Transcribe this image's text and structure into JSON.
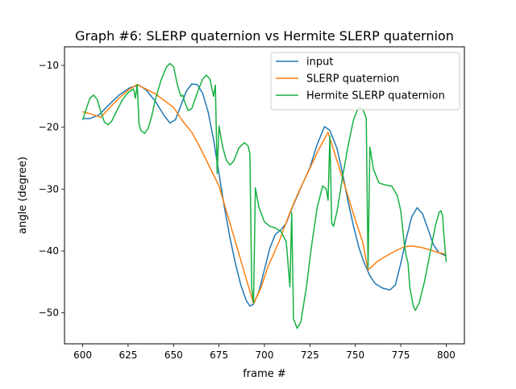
{
  "chart_data": {
    "type": "line",
    "title": "Graph #6: SLERP quaternion vs Hermite SLERP quaternion",
    "xlabel": "frame #",
    "ylabel": "angle (degree)",
    "xlim": [
      590,
      810
    ],
    "ylim": [
      -55,
      -7
    ],
    "xticks": [
      600,
      625,
      650,
      675,
      700,
      725,
      750,
      775,
      800
    ],
    "yticks": [
      -10,
      -20,
      -30,
      -40,
      -50
    ],
    "xtick_labels": [
      "600",
      "625",
      "650",
      "675",
      "700",
      "725",
      "750",
      "775",
      "800"
    ],
    "ytick_labels": [
      "−10",
      "−20",
      "−30",
      "−40",
      "−50"
    ],
    "grid": false,
    "legend_position": "top-right",
    "series": [
      {
        "name": "input",
        "color": "#1f77b4",
        "points": [
          [
            600,
            -18.6
          ],
          [
            604,
            -18.6
          ],
          [
            609,
            -18
          ],
          [
            614,
            -16.5
          ],
          [
            620,
            -14.8
          ],
          [
            626,
            -13.6
          ],
          [
            631,
            -13.2
          ],
          [
            635,
            -14
          ],
          [
            640,
            -15.8
          ],
          [
            645,
            -18.2
          ],
          [
            648,
            -19.3
          ],
          [
            651,
            -18.8
          ],
          [
            654,
            -16.5
          ],
          [
            657,
            -14.2
          ],
          [
            660,
            -13
          ],
          [
            663,
            -13.1
          ],
          [
            666,
            -14.5
          ],
          [
            669,
            -17.5
          ],
          [
            672,
            -22
          ],
          [
            675,
            -27.5
          ],
          [
            678,
            -33
          ],
          [
            681,
            -37.8
          ],
          [
            684,
            -42
          ],
          [
            687,
            -45.5
          ],
          [
            690,
            -48
          ],
          [
            692,
            -48.9
          ],
          [
            694,
            -48.6
          ],
          [
            697,
            -46.5
          ],
          [
            700,
            -43
          ],
          [
            703,
            -39.5
          ],
          [
            706,
            -37.3
          ],
          [
            709,
            -36.6
          ],
          [
            712,
            -35.5
          ],
          [
            715,
            -33.2
          ],
          [
            720,
            -29.8
          ],
          [
            725,
            -26.5
          ],
          [
            729,
            -22.8
          ],
          [
            733,
            -19.9
          ],
          [
            736,
            -20.5
          ],
          [
            740,
            -23.5
          ],
          [
            743,
            -27.5
          ],
          [
            746,
            -32
          ],
          [
            749,
            -36
          ],
          [
            752,
            -39.5
          ],
          [
            755,
            -42
          ],
          [
            758,
            -44
          ],
          [
            761,
            -45.3
          ],
          [
            765,
            -46
          ],
          [
            769,
            -46.3
          ],
          [
            772,
            -45.5
          ],
          [
            775,
            -42
          ],
          [
            778,
            -38
          ],
          [
            781,
            -34.5
          ],
          [
            784,
            -33
          ],
          [
            787,
            -34
          ],
          [
            790,
            -36.5
          ],
          [
            793,
            -39
          ],
          [
            796,
            -40.3
          ],
          [
            800,
            -40.8
          ]
        ]
      },
      {
        "name": "SLERP quaternion",
        "color": "#ff7f0e",
        "points": [
          [
            600,
            -17.5
          ],
          [
            605,
            -17.9
          ],
          [
            610,
            -18.4
          ],
          [
            615,
            -16.8
          ],
          [
            620,
            -15.3
          ],
          [
            625,
            -14
          ],
          [
            630,
            -13.1
          ],
          [
            640,
            -14.6
          ],
          [
            650,
            -16.8
          ],
          [
            655,
            -19
          ],
          [
            660,
            -20.8
          ],
          [
            665,
            -23.5
          ],
          [
            670,
            -26.5
          ],
          [
            675,
            -29.5
          ],
          [
            680,
            -34.5
          ],
          [
            685,
            -39.5
          ],
          [
            690,
            -44.5
          ],
          [
            694,
            -48.5
          ],
          [
            698,
            -46
          ],
          [
            702,
            -42.5
          ],
          [
            708,
            -38.5
          ],
          [
            714,
            -33.8
          ],
          [
            718,
            -31
          ],
          [
            722,
            -28.5
          ],
          [
            726,
            -26
          ],
          [
            730,
            -23.5
          ],
          [
            735,
            -20.8
          ],
          [
            740,
            -25.5
          ],
          [
            745,
            -30.2
          ],
          [
            750,
            -35
          ],
          [
            754,
            -38.5
          ],
          [
            757,
            -43.1
          ],
          [
            762,
            -41.7
          ],
          [
            767,
            -40.8
          ],
          [
            772,
            -40
          ],
          [
            777,
            -39.3
          ],
          [
            781,
            -39.2
          ],
          [
            786,
            -39.4
          ],
          [
            791,
            -39.8
          ],
          [
            796,
            -40.3
          ],
          [
            800,
            -40.5
          ]
        ]
      },
      {
        "name": "Hermite SLERP quaternion",
        "color": "#17b040",
        "points": [
          [
            600,
            -18.8
          ],
          [
            602,
            -17
          ],
          [
            604,
            -15.3
          ],
          [
            606,
            -14.8
          ],
          [
            608,
            -15.5
          ],
          [
            610,
            -17.5
          ],
          [
            612,
            -19.2
          ],
          [
            614,
            -19.6
          ],
          [
            616,
            -19
          ],
          [
            619,
            -17.2
          ],
          [
            622,
            -15.5
          ],
          [
            625,
            -14.4
          ],
          [
            628,
            -13.8
          ],
          [
            629,
            -15.3
          ],
          [
            630,
            -13.1
          ],
          [
            631,
            -19.5
          ],
          [
            632,
            -20.5
          ],
          [
            634,
            -21
          ],
          [
            636,
            -20.2
          ],
          [
            638,
            -18.2
          ],
          [
            640,
            -15.5
          ],
          [
            643,
            -12.5
          ],
          [
            646,
            -10.3
          ],
          [
            648,
            -9.7
          ],
          [
            650,
            -10.2
          ],
          [
            652,
            -13
          ],
          [
            654,
            -15
          ],
          [
            655,
            -14.8
          ],
          [
            656,
            -15.8
          ],
          [
            658,
            -17.3
          ],
          [
            660,
            -17
          ],
          [
            663,
            -14.5
          ],
          [
            666,
            -12.2
          ],
          [
            668,
            -11.6
          ],
          [
            670,
            -12.2
          ],
          [
            672,
            -15
          ],
          [
            673,
            -13.2
          ],
          [
            674,
            -27.5
          ],
          [
            675,
            -19.8
          ],
          [
            677,
            -23.2
          ],
          [
            679,
            -25.3
          ],
          [
            681,
            -26.1
          ],
          [
            683,
            -25.5
          ],
          [
            686,
            -23.3
          ],
          [
            689,
            -22.5
          ],
          [
            691,
            -23
          ],
          [
            692,
            -24.3
          ],
          [
            693,
            -46
          ],
          [
            694,
            -48.4
          ],
          [
            695,
            -29.8
          ],
          [
            697,
            -33
          ],
          [
            700,
            -35.3
          ],
          [
            703,
            -36
          ],
          [
            706,
            -36.3
          ],
          [
            709,
            -36.8
          ],
          [
            712,
            -38.5
          ],
          [
            714,
            -45.8
          ],
          [
            715,
            -33.8
          ],
          [
            716,
            -51
          ],
          [
            718,
            -52.5
          ],
          [
            720,
            -51.5
          ],
          [
            723,
            -46
          ],
          [
            726,
            -39
          ],
          [
            729,
            -33
          ],
          [
            732,
            -29.5
          ],
          [
            734,
            -30
          ],
          [
            735,
            -31.8
          ],
          [
            736,
            -21.4
          ],
          [
            737,
            -35.5
          ],
          [
            738,
            -36
          ],
          [
            740,
            -33.5
          ],
          [
            743,
            -28
          ],
          [
            746,
            -23
          ],
          [
            749,
            -18.8
          ],
          [
            751,
            -17.3
          ],
          [
            752,
            -16.8
          ],
          [
            754,
            -17
          ],
          [
            756,
            -18.5
          ],
          [
            757,
            -42.8
          ],
          [
            758,
            -23.2
          ],
          [
            760,
            -26.8
          ],
          [
            763,
            -29
          ],
          [
            766,
            -29.3
          ],
          [
            770,
            -29.5
          ],
          [
            773,
            -31
          ],
          [
            775,
            -33.5
          ],
          [
            777,
            -39
          ],
          [
            778,
            -40.8
          ],
          [
            779,
            -42
          ],
          [
            780,
            -46
          ],
          [
            782,
            -49
          ],
          [
            783,
            -49.6
          ],
          [
            785,
            -48.5
          ],
          [
            788,
            -45
          ],
          [
            791,
            -40.5
          ],
          [
            794,
            -36
          ],
          [
            796,
            -33.8
          ],
          [
            797,
            -33.5
          ],
          [
            798,
            -34.3
          ],
          [
            799,
            -38.5
          ],
          [
            800,
            -41.8
          ]
        ]
      }
    ]
  }
}
